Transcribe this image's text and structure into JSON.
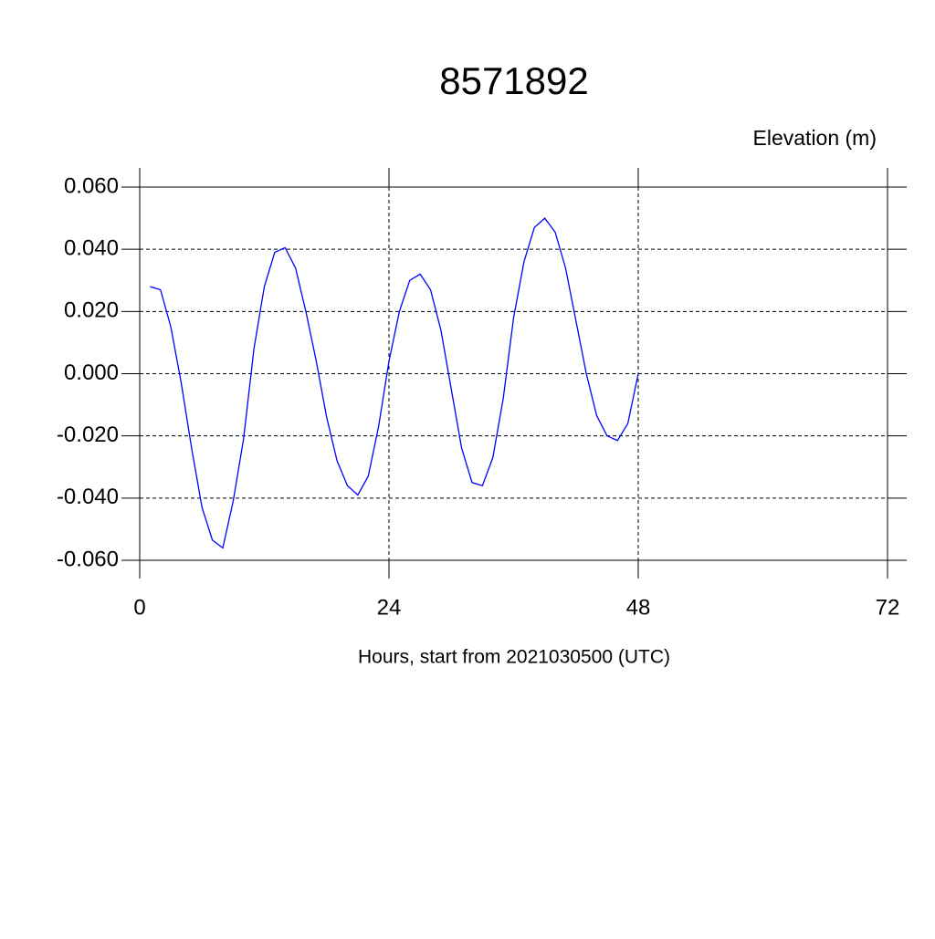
{
  "chart_data": {
    "type": "line",
    "title": "8571892",
    "ylabel": "Elevation (m)",
    "xlabel": "Hours, start from 2021030500 (UTC)",
    "x": [
      1,
      2,
      3,
      4,
      5,
      6,
      7,
      8,
      9,
      10,
      11,
      12,
      13,
      14,
      15,
      16,
      17,
      18,
      19,
      20,
      21,
      22,
      23,
      24,
      25,
      26,
      27,
      28,
      29,
      30,
      31,
      32,
      33,
      34,
      35,
      36,
      37,
      38,
      39,
      40,
      41,
      42,
      43,
      44,
      45,
      46,
      47,
      48
    ],
    "series": [
      {
        "name": "8571892",
        "color": "#0000ff",
        "values": [
          0.028,
          0.027,
          0.015,
          -0.003,
          -0.024,
          -0.043,
          -0.0535,
          -0.056,
          -0.041,
          -0.021,
          0.008,
          0.028,
          0.039,
          0.0405,
          0.034,
          0.02,
          0.004,
          -0.014,
          -0.028,
          -0.036,
          -0.039,
          -0.033,
          -0.017,
          0.004,
          0.02,
          0.03,
          0.032,
          0.027,
          0.014,
          -0.005,
          -0.024,
          -0.035,
          -0.036,
          -0.027,
          -0.008,
          0.018,
          0.036,
          0.047,
          0.05,
          0.0455,
          0.034,
          0.017,
          0.0,
          -0.0135,
          -0.02,
          -0.0215,
          -0.016,
          0.0
        ]
      }
    ],
    "xlim": [
      0,
      72
    ],
    "xticks": [
      0,
      24,
      48,
      72
    ],
    "ylim": [
      -0.06,
      0.06
    ],
    "yticks": [
      {
        "value": -0.06,
        "label": "-0.060"
      },
      {
        "value": -0.04,
        "label": "-0.040"
      },
      {
        "value": -0.02,
        "label": "-0.020"
      },
      {
        "value": 0,
        "label": "0.000"
      },
      {
        "value": 0.02,
        "label": "0.020"
      },
      {
        "value": 0.04,
        "label": "0.040"
      },
      {
        "value": 0.06,
        "label": "0.060"
      }
    ],
    "grid": true
  }
}
